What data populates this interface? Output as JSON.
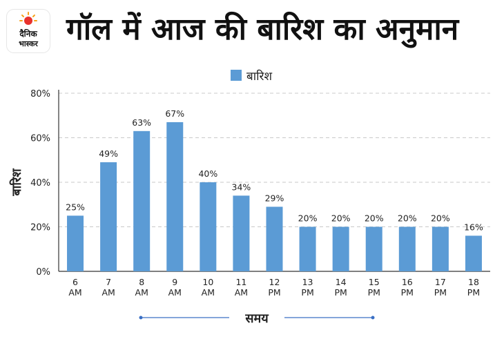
{
  "brand": {
    "line1": "दैनिक",
    "line2": "भास्कर",
    "colors": {
      "orange": "#f7a21b",
      "red": "#e8322d"
    }
  },
  "title": "गॉल में आज की बारिश का अनुमान",
  "chart_data": {
    "type": "bar",
    "categories": [
      [
        "6",
        "AM"
      ],
      [
        "7",
        "AM"
      ],
      [
        "8",
        "AM"
      ],
      [
        "9",
        "AM"
      ],
      [
        "10",
        "AM"
      ],
      [
        "11",
        "AM"
      ],
      [
        "12",
        "PM"
      ],
      [
        "13",
        "PM"
      ],
      [
        "14",
        "PM"
      ],
      [
        "15",
        "PM"
      ],
      [
        "16",
        "PM"
      ],
      [
        "17",
        "PM"
      ],
      [
        "18",
        "PM"
      ]
    ],
    "series": [
      {
        "name": "बारिश",
        "values": [
          25,
          49,
          63,
          67,
          40,
          34,
          29,
          20,
          20,
          20,
          20,
          20,
          16
        ],
        "color": "#5b9bd5"
      }
    ],
    "data_labels": [
      "25%",
      "49%",
      "63%",
      "67%",
      "40%",
      "34%",
      "29%",
      "20%",
      "20%",
      "20%",
      "20%",
      "20%",
      "16%"
    ],
    "ylabel": "बारिश",
    "xlabel": "समय",
    "ylim": [
      0,
      80
    ],
    "yticks": [
      0,
      20,
      40,
      60,
      80
    ],
    "ytick_suffix": "%",
    "grid": true,
    "legend_position": "top-center"
  }
}
